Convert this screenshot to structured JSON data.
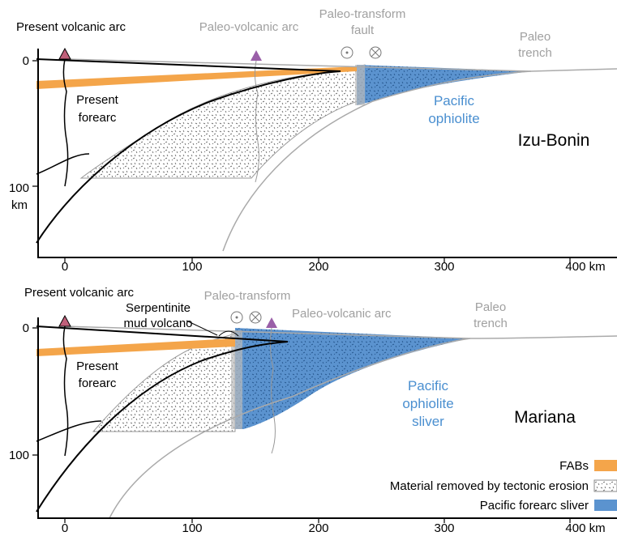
{
  "panels": [
    {
      "name": "Izu-Bonin",
      "present_arc": "Present volcanic arc",
      "paleo_arc": "Paleo-volcanic arc",
      "paleo_transform": [
        "Paleo-transform",
        "fault"
      ],
      "paleo_trench": [
        "Paleo",
        "trench"
      ],
      "forearc": [
        "Present",
        "forearc"
      ],
      "ophiolite": [
        "Pacific",
        "ophiolite"
      ],
      "x_ticks": [
        "0",
        "100",
        "200",
        "300",
        "400 km"
      ],
      "y_ticks": [
        "0",
        "100"
      ],
      "y_unit": "km"
    },
    {
      "name": "Mariana",
      "present_arc": "Present volcanic arc",
      "mud_volcano": [
        "Serpentinite",
        "mud volcano"
      ],
      "paleo_transform": [
        "Paleo-transform"
      ],
      "paleo_arc": "Paleo-volcanic arc",
      "paleo_trench": [
        "Paleo",
        "trench"
      ],
      "forearc": [
        "Present",
        "forearc"
      ],
      "ophiolite": [
        "Pacific",
        "ophiolite",
        "sliver"
      ],
      "x_ticks": [
        "0",
        "100",
        "200",
        "300",
        "400 km"
      ],
      "y_ticks": [
        "0",
        "100"
      ]
    }
  ],
  "legend": [
    "FABs",
    "Material removed by tectonic erosion",
    "Pacific forearc sliver"
  ]
}
